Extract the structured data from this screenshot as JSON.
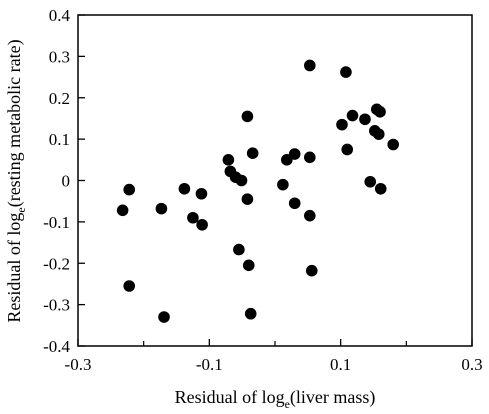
{
  "chart_data": {
    "type": "scatter",
    "title": "",
    "xlabel": {
      "prefix": "Residual of log",
      "sub": "e",
      "suffix": "(liver mass)"
    },
    "ylabel": {
      "prefix": "Residual of log",
      "sub": "e",
      "suffix": "(resting metabolic rate)"
    },
    "xlim": [
      -0.3,
      0.3
    ],
    "ylim": [
      -0.4,
      0.4
    ],
    "x_ticks": [
      -0.3,
      -0.1,
      0.1,
      0.3
    ],
    "x_tick_labels": [
      "-0.3",
      "-0.1",
      "0.1",
      "0.3"
    ],
    "x_minor_ticks": [
      -0.2,
      0,
      0.2
    ],
    "y_ticks": [
      -0.4,
      -0.3,
      -0.2,
      -0.1,
      0,
      0.1,
      0.2,
      0.3,
      0.4
    ],
    "y_tick_labels": [
      "-0.4",
      "-0.3",
      "-0.2",
      "-0.1",
      "0",
      "0.1",
      "0.2",
      "0.3",
      "0.4"
    ],
    "grid": false,
    "marker_color": "#000000",
    "points": [
      {
        "x": -0.232,
        "y": -0.072
      },
      {
        "x": -0.222,
        "y": -0.022
      },
      {
        "x": -0.222,
        "y": -0.255
      },
      {
        "x": -0.173,
        "y": -0.068
      },
      {
        "x": -0.169,
        "y": -0.33
      },
      {
        "x": -0.138,
        "y": -0.02
      },
      {
        "x": -0.125,
        "y": -0.09
      },
      {
        "x": -0.112,
        "y": -0.032
      },
      {
        "x": -0.111,
        "y": -0.107
      },
      {
        "x": -0.071,
        "y": 0.05
      },
      {
        "x": -0.068,
        "y": 0.022
      },
      {
        "x": -0.06,
        "y": 0.008
      },
      {
        "x": -0.055,
        "y": -0.167
      },
      {
        "x": -0.051,
        "y": 0.0
      },
      {
        "x": -0.042,
        "y": 0.155
      },
      {
        "x": -0.042,
        "y": -0.045
      },
      {
        "x": -0.04,
        "y": -0.205
      },
      {
        "x": -0.037,
        "y": -0.322
      },
      {
        "x": -0.034,
        "y": 0.066
      },
      {
        "x": 0.012,
        "y": -0.01
      },
      {
        "x": 0.018,
        "y": 0.05
      },
      {
        "x": 0.03,
        "y": 0.064
      },
      {
        "x": 0.03,
        "y": -0.055
      },
      {
        "x": 0.053,
        "y": 0.278
      },
      {
        "x": 0.053,
        "y": 0.056
      },
      {
        "x": 0.053,
        "y": -0.085
      },
      {
        "x": 0.056,
        "y": -0.218
      },
      {
        "x": 0.102,
        "y": 0.135
      },
      {
        "x": 0.108,
        "y": 0.262
      },
      {
        "x": 0.11,
        "y": 0.075
      },
      {
        "x": 0.118,
        "y": 0.157
      },
      {
        "x": 0.137,
        "y": 0.148
      },
      {
        "x": 0.145,
        "y": -0.003
      },
      {
        "x": 0.152,
        "y": 0.12
      },
      {
        "x": 0.155,
        "y": 0.172
      },
      {
        "x": 0.158,
        "y": 0.112
      },
      {
        "x": 0.16,
        "y": 0.166
      },
      {
        "x": 0.161,
        "y": -0.02
      },
      {
        "x": 0.18,
        "y": 0.087
      }
    ]
  }
}
